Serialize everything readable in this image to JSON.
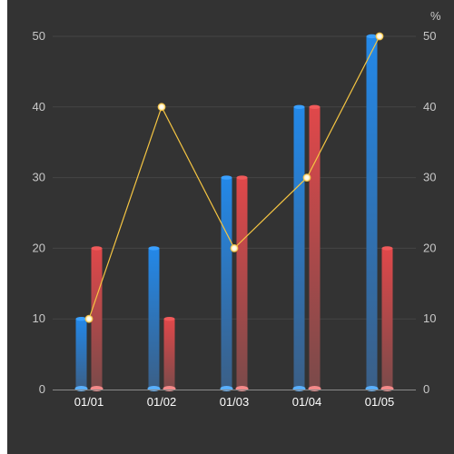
{
  "chart_data": {
    "type": "bar",
    "categories": [
      "01/01",
      "01/02",
      "01/03",
      "01/04",
      "01/05"
    ],
    "series": [
      {
        "type": "bar",
        "values": [
          10,
          20,
          30,
          40,
          50
        ],
        "color": "#2d8fe8"
      },
      {
        "type": "bar",
        "values": [
          20,
          10,
          30,
          40,
          20
        ],
        "color": "#e24a4a"
      },
      {
        "type": "line",
        "axis": "right",
        "values": [
          10,
          40,
          20,
          30,
          50
        ],
        "color": "#f5c542"
      }
    ],
    "y_left": {
      "min": 0,
      "max": 50,
      "ticks": [
        "0",
        "10",
        "20",
        "30",
        "40",
        "50"
      ]
    },
    "y_right": {
      "min": 0,
      "max": 50,
      "ticks": [
        "0",
        "10",
        "20",
        "30",
        "40",
        "50"
      ],
      "unit": "%"
    },
    "grid": true,
    "legend": "none",
    "background": "#333333"
  }
}
